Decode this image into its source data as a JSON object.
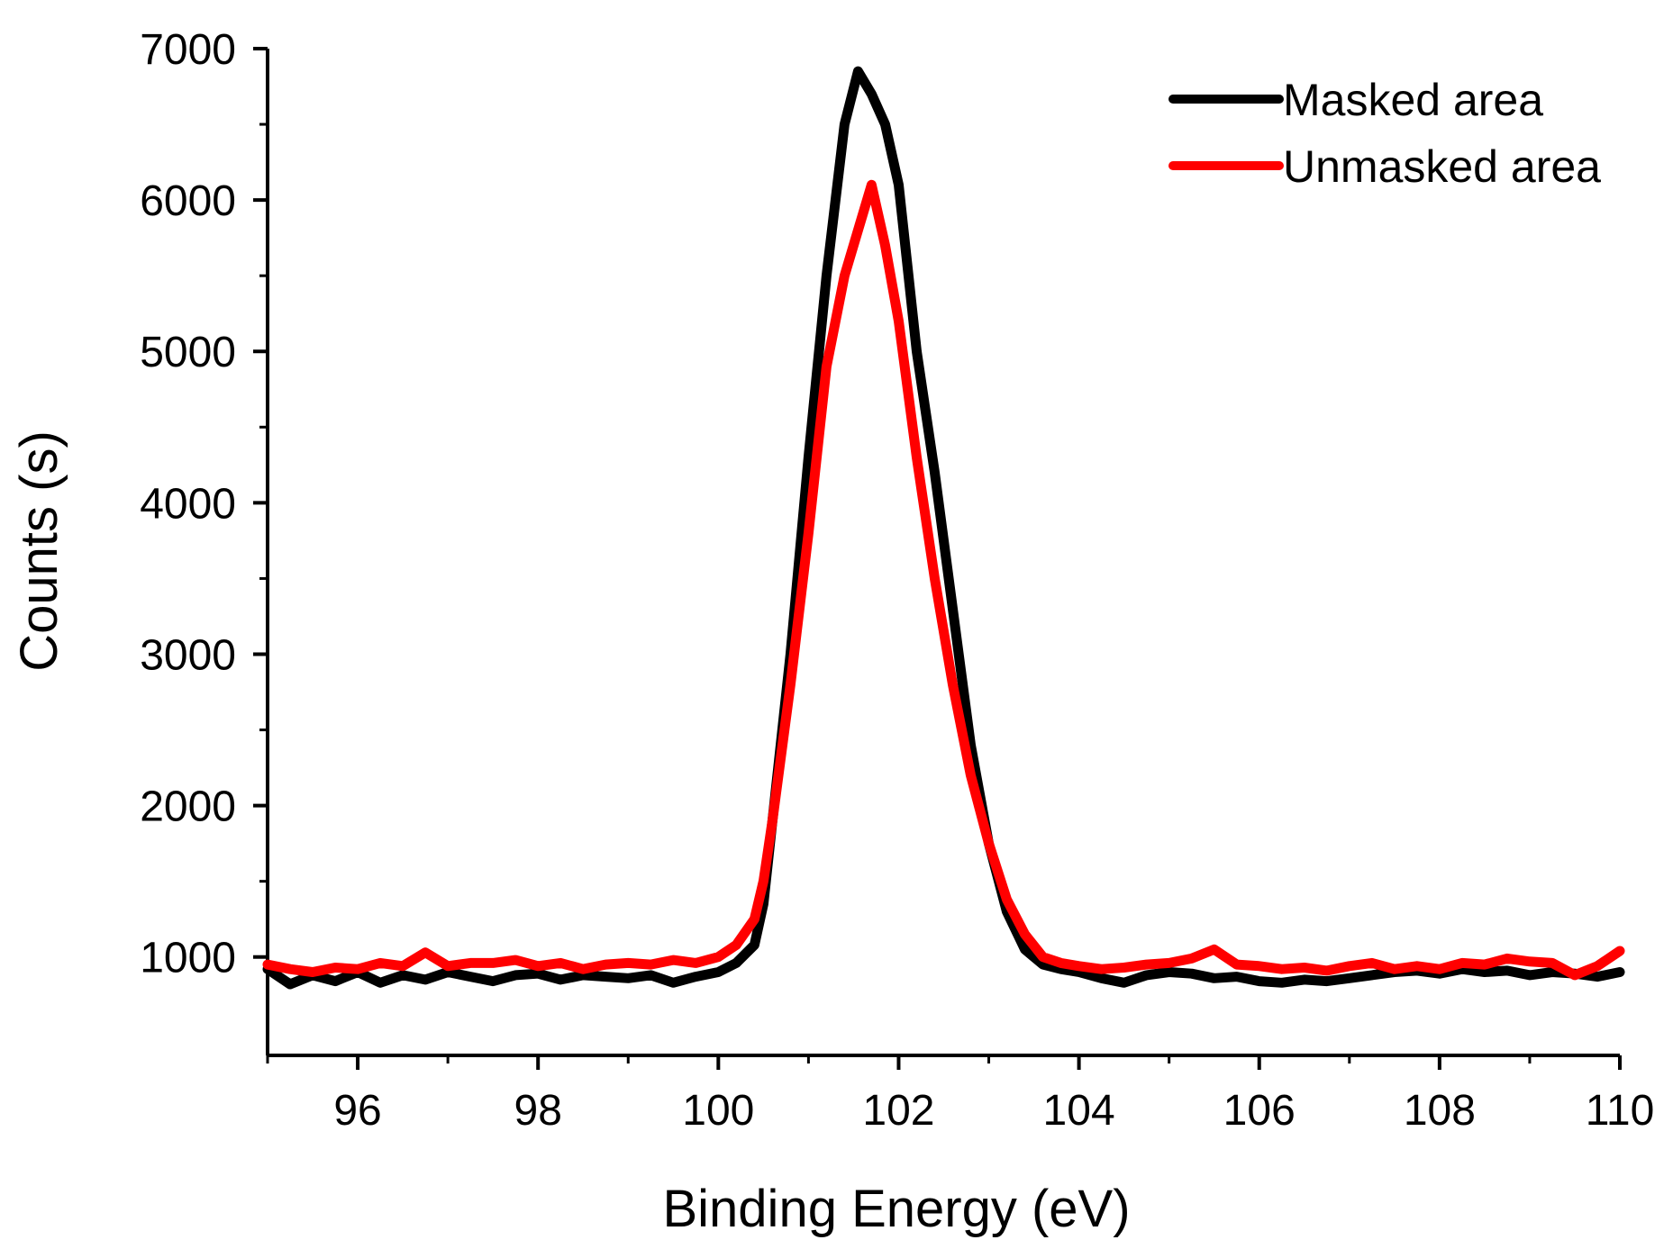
{
  "chart_data": {
    "type": "line",
    "title": "",
    "xlabel": "Binding Energy (eV)",
    "ylabel": "Counts (s)",
    "xlim": [
      95,
      110
    ],
    "ylim": [
      350,
      7000
    ],
    "xticks": [
      96,
      98,
      100,
      102,
      104,
      106,
      108,
      110
    ],
    "yticks": [
      1000,
      2000,
      3000,
      4000,
      5000,
      6000,
      7000
    ],
    "x_tick_labels": [
      "96",
      "98",
      "100",
      "102",
      "104",
      "106",
      "108",
      "110"
    ],
    "y_tick_labels": [
      "1000",
      "2000",
      "3000",
      "4000",
      "5000",
      "6000",
      "7000"
    ],
    "grid": false,
    "legend_position": "top-right",
    "series": [
      {
        "name": "Masked area",
        "color": "#000000",
        "x": [
          95.0,
          95.25,
          95.5,
          95.75,
          96.0,
          96.25,
          96.5,
          96.75,
          97.0,
          97.25,
          97.5,
          97.75,
          98.0,
          98.25,
          98.5,
          98.75,
          99.0,
          99.25,
          99.5,
          99.75,
          100.0,
          100.2,
          100.4,
          100.5,
          100.6,
          100.8,
          101.0,
          101.2,
          101.4,
          101.55,
          101.7,
          101.85,
          102.0,
          102.2,
          102.4,
          102.6,
          102.8,
          103.0,
          103.2,
          103.4,
          103.6,
          103.8,
          104.0,
          104.25,
          104.5,
          104.75,
          105.0,
          105.25,
          105.5,
          105.75,
          106.0,
          106.25,
          106.5,
          106.75,
          107.0,
          107.25,
          107.5,
          107.75,
          108.0,
          108.25,
          108.5,
          108.75,
          109.0,
          109.25,
          109.5,
          109.75,
          110.0
        ],
        "y": [
          920,
          820,
          880,
          840,
          900,
          830,
          880,
          850,
          900,
          870,
          840,
          880,
          890,
          850,
          880,
          870,
          860,
          880,
          830,
          870,
          900,
          960,
          1080,
          1350,
          1900,
          3000,
          4300,
          5500,
          6500,
          6850,
          6700,
          6500,
          6100,
          5000,
          4200,
          3300,
          2400,
          1750,
          1300,
          1050,
          950,
          920,
          900,
          860,
          830,
          880,
          900,
          890,
          860,
          870,
          840,
          830,
          850,
          840,
          860,
          880,
          900,
          910,
          890,
          920,
          900,
          910,
          880,
          900,
          890,
          870,
          900
        ]
      },
      {
        "name": "Unmasked area",
        "color": "#ff0000",
        "x": [
          95.0,
          95.25,
          95.5,
          95.75,
          96.0,
          96.25,
          96.5,
          96.75,
          97.0,
          97.25,
          97.5,
          97.75,
          98.0,
          98.25,
          98.5,
          98.75,
          99.0,
          99.25,
          99.5,
          99.75,
          100.0,
          100.2,
          100.4,
          100.5,
          100.6,
          100.8,
          101.0,
          101.2,
          101.4,
          101.55,
          101.7,
          101.85,
          102.0,
          102.2,
          102.4,
          102.6,
          102.8,
          103.0,
          103.2,
          103.4,
          103.6,
          103.8,
          104.0,
          104.25,
          104.5,
          104.75,
          105.0,
          105.25,
          105.5,
          105.75,
          106.0,
          106.25,
          106.5,
          106.75,
          107.0,
          107.25,
          107.5,
          107.75,
          108.0,
          108.25,
          108.5,
          108.75,
          109.0,
          109.25,
          109.5,
          109.75,
          110.0
        ],
        "y": [
          950,
          920,
          900,
          930,
          920,
          960,
          940,
          1030,
          940,
          960,
          960,
          980,
          940,
          960,
          920,
          950,
          960,
          950,
          980,
          960,
          1000,
          1080,
          1250,
          1500,
          1900,
          2800,
          3800,
          4900,
          5500,
          5800,
          6100,
          5700,
          5200,
          4300,
          3500,
          2800,
          2200,
          1750,
          1380,
          1150,
          1000,
          960,
          940,
          920,
          930,
          950,
          960,
          990,
          1050,
          950,
          940,
          920,
          930,
          910,
          940,
          960,
          920,
          940,
          920,
          960,
          950,
          990,
          970,
          960,
          880,
          940,
          1040
        ]
      }
    ]
  }
}
